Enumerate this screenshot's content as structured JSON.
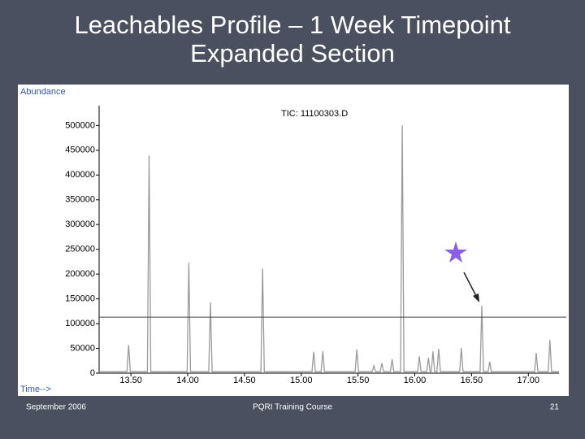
{
  "slide": {
    "title_line1": "Leachables Profile – 1 Week Timepoint",
    "title_line2": "Expanded Section",
    "footer_left": "September 2006",
    "footer_center": "PQRI Training Course",
    "footer_right": "21"
  },
  "chart_data": {
    "type": "line",
    "title": "TIC: 11100303.D",
    "y_label": "Abundance",
    "x_label": "Time-->",
    "color": "#9a9a9a",
    "x": [
      13.22,
      13.465,
      13.48,
      13.495,
      13.645,
      13.66,
      13.675,
      13.995,
      14.01,
      14.025,
      14.185,
      14.2,
      14.215,
      14.645,
      14.66,
      14.675,
      15.095,
      15.11,
      15.125,
      15.175,
      15.19,
      15.205,
      15.475,
      15.49,
      15.505,
      15.625,
      15.64,
      15.655,
      15.695,
      15.71,
      15.725,
      15.785,
      15.8,
      15.815,
      15.875,
      15.89,
      15.905,
      16.025,
      16.04,
      16.055,
      16.105,
      16.12,
      16.135,
      16.145,
      16.16,
      16.175,
      16.195,
      16.21,
      16.225,
      16.395,
      16.41,
      16.425,
      16.575,
      16.59,
      16.605,
      16.645,
      16.66,
      16.675,
      17.055,
      17.07,
      17.085,
      17.175,
      17.19,
      17.205,
      17.27
    ],
    "values": [
      3000,
      3000,
      57000,
      3000,
      3000,
      439000,
      3000,
      3000,
      223000,
      3000,
      3000,
      143000,
      3000,
      3000,
      211000,
      3000,
      3000,
      43000,
      3000,
      3000,
      44000,
      3000,
      3000,
      48000,
      3000,
      3000,
      15000,
      3000,
      3000,
      20000,
      3000,
      3000,
      28000,
      3000,
      3000,
      500000,
      3000,
      3000,
      34000,
      3000,
      3000,
      31000,
      3000,
      3000,
      44000,
      3000,
      3000,
      49000,
      3000,
      3000,
      51000,
      3000,
      3000,
      136000,
      3000,
      3000,
      23000,
      3000,
      3000,
      41000,
      3000,
      3000,
      67000,
      3000,
      3000
    ],
    "reference_line": 113000,
    "xlim": [
      13.22,
      17.27
    ],
    "ylim": [
      0,
      540000
    ],
    "xticks": [
      {
        "value": 13.5,
        "label": "13.50"
      },
      {
        "value": 14,
        "label": "14.00"
      },
      {
        "value": 14.5,
        "label": "14.50"
      },
      {
        "value": 15,
        "label": "15.00"
      },
      {
        "value": 15.5,
        "label": "15.50"
      },
      {
        "value": 16,
        "label": "16.00"
      },
      {
        "value": 16.5,
        "label": "16.50"
      },
      {
        "value": 17,
        "label": "17.00"
      }
    ],
    "yticks": [
      0,
      50000,
      100000,
      150000,
      200000,
      250000,
      300000,
      350000,
      400000,
      450000,
      500000
    ]
  }
}
